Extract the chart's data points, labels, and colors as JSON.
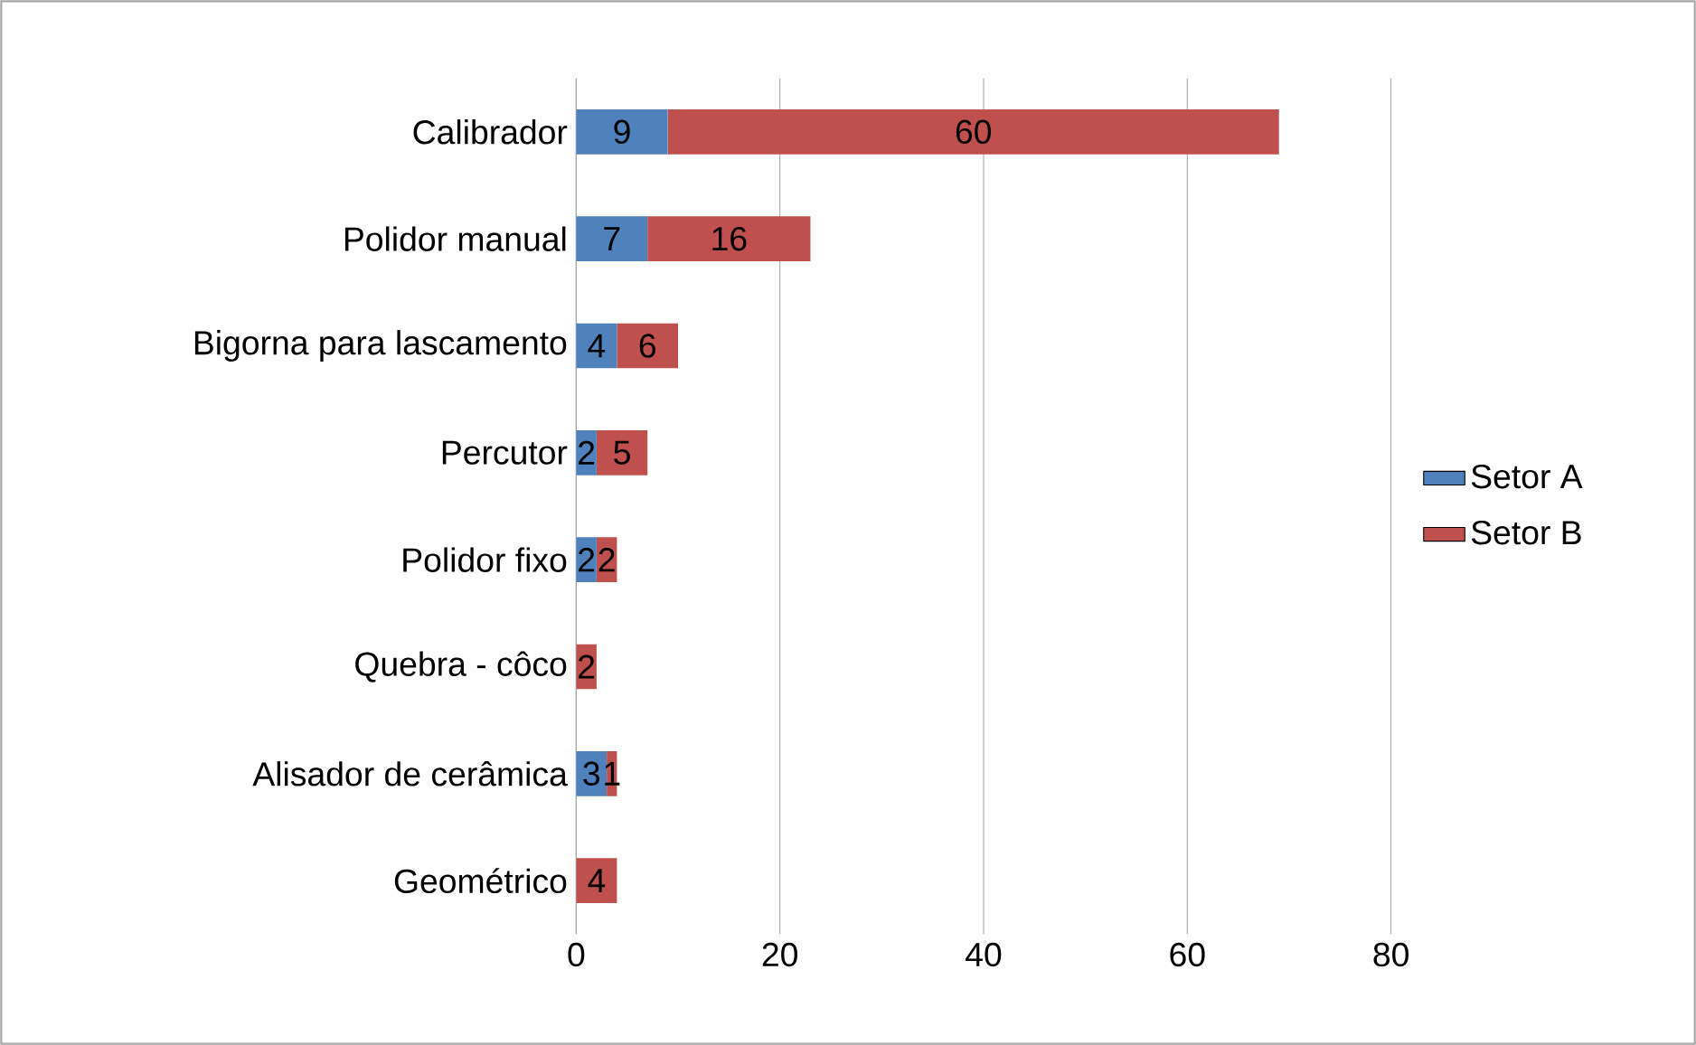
{
  "chart_data": {
    "type": "bar",
    "orientation": "horizontal",
    "stacked": true,
    "categories": [
      "Calibrador",
      "Polidor manual",
      "Bigorna para lascamento",
      "Percutor",
      "Polidor fixo",
      "Quebra - côco",
      "Alisador de cerâmica",
      "Geométrico"
    ],
    "series": [
      {
        "name": "Setor A",
        "color": "#4f81bd",
        "values": [
          9,
          7,
          4,
          2,
          2,
          0,
          3,
          0
        ],
        "value_labels": [
          "9",
          "7",
          "4",
          "2",
          "2",
          null,
          "3",
          null
        ]
      },
      {
        "name": "Setor B",
        "color": "#c0504d",
        "values": [
          60,
          16,
          6,
          5,
          2,
          2,
          1,
          4
        ],
        "value_labels": [
          "60",
          "16",
          "6",
          "5",
          "2",
          "2",
          "1",
          "4"
        ]
      }
    ],
    "xlim": [
      0,
      80
    ],
    "xticks": [
      0,
      20,
      40,
      60,
      80
    ],
    "grid": "x",
    "legend": "right"
  }
}
